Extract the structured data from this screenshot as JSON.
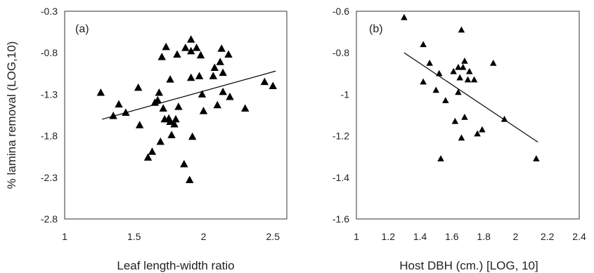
{
  "figure": {
    "shared_ylabel": "% lamina removal (LOG,10)"
  },
  "chart_data": [
    {
      "type": "scatter",
      "panel_label": "(a)",
      "xlabel": "Leaf length-width ratio",
      "ylabel": "% lamina removal (LOG,10)",
      "xlim": [
        1,
        2.6
      ],
      "ylim": [
        -2.8,
        -0.3
      ],
      "xticks": [
        "1",
        "1.5",
        "2",
        "2.5"
      ],
      "yticks": [
        "-0.3",
        "-0.8",
        "-1.3",
        "-1.8",
        "-2.3",
        "-2.8"
      ],
      "xtick_values": [
        1,
        1.5,
        2,
        2.5
      ],
      "ytick_values": [
        -0.3,
        -0.8,
        -1.3,
        -1.8,
        -2.3,
        -2.8
      ],
      "marker": "triangle",
      "grid": false,
      "points": [
        [
          1.26,
          -1.28
        ],
        [
          1.35,
          -1.56
        ],
        [
          1.39,
          -1.42
        ],
        [
          1.44,
          -1.52
        ],
        [
          1.53,
          -1.22
        ],
        [
          1.54,
          -1.67
        ],
        [
          1.6,
          -2.06
        ],
        [
          1.63,
          -1.99
        ],
        [
          1.65,
          -1.4
        ],
        [
          1.67,
          -1.37
        ],
        [
          1.68,
          -1.28
        ],
        [
          1.69,
          -1.87
        ],
        [
          1.7,
          -0.85
        ],
        [
          1.71,
          -1.47
        ],
        [
          1.72,
          -1.6
        ],
        [
          1.73,
          -0.73
        ],
        [
          1.75,
          -1.59
        ],
        [
          1.76,
          -1.12
        ],
        [
          1.76,
          -1.63
        ],
        [
          1.77,
          -1.79
        ],
        [
          1.79,
          -1.66
        ],
        [
          1.8,
          -1.6
        ],
        [
          1.81,
          -0.82
        ],
        [
          1.82,
          -1.45
        ],
        [
          1.86,
          -2.14
        ],
        [
          1.87,
          -0.74
        ],
        [
          1.9,
          -2.33
        ],
        [
          1.91,
          -0.64
        ],
        [
          1.91,
          -1.1
        ],
        [
          1.91,
          -0.78
        ],
        [
          1.92,
          -1.81
        ],
        [
          1.95,
          -0.74
        ],
        [
          1.97,
          -1.08
        ],
        [
          1.98,
          -0.83
        ],
        [
          1.99,
          -1.3
        ],
        [
          2.0,
          -1.5
        ],
        [
          2.07,
          -1.08
        ],
        [
          2.08,
          -0.98
        ],
        [
          2.1,
          -1.43
        ],
        [
          2.12,
          -0.91
        ],
        [
          2.13,
          -0.75
        ],
        [
          2.14,
          -1.27
        ],
        [
          2.14,
          -1.04
        ],
        [
          2.18,
          -0.82
        ],
        [
          2.19,
          -1.33
        ],
        [
          2.3,
          -1.47
        ],
        [
          2.44,
          -1.15
        ],
        [
          2.5,
          -1.2
        ]
      ],
      "trendline": {
        "x": [
          1.27,
          2.52
        ],
        "y": [
          -1.6,
          -1.02
        ]
      }
    },
    {
      "type": "scatter",
      "panel_label": "(b)",
      "xlabel": "Host DBH (cm.) [LOG, 10]",
      "ylabel": "",
      "xlim": [
        1,
        2.4
      ],
      "ylim": [
        -1.6,
        -0.6
      ],
      "xticks": [
        "1",
        "1.2",
        "1.4",
        "1.6",
        "1.8",
        "2",
        "2.2",
        "2.4"
      ],
      "yticks": [
        "-0.6",
        "-0.8",
        "-1",
        "-1.2",
        "-1.4",
        "-1.6"
      ],
      "xtick_values": [
        1,
        1.2,
        1.4,
        1.6,
        1.8,
        2,
        2.2,
        2.4
      ],
      "ytick_values": [
        -0.6,
        -0.8,
        -1,
        -1.2,
        -1.4,
        -1.6
      ],
      "marker": "triangle",
      "grid": false,
      "points": [
        [
          1.3,
          -0.63
        ],
        [
          1.42,
          -0.76
        ],
        [
          1.42,
          -0.94
        ],
        [
          1.46,
          -0.85
        ],
        [
          1.5,
          -0.98
        ],
        [
          1.52,
          -0.9
        ],
        [
          1.53,
          -1.31
        ],
        [
          1.56,
          -1.03
        ],
        [
          1.61,
          -0.89
        ],
        [
          1.62,
          -1.13
        ],
        [
          1.64,
          -0.87
        ],
        [
          1.64,
          -0.99
        ],
        [
          1.65,
          -0.92
        ],
        [
          1.66,
          -1.21
        ],
        [
          1.66,
          -0.69
        ],
        [
          1.67,
          -0.87
        ],
        [
          1.68,
          -0.84
        ],
        [
          1.68,
          -1.11
        ],
        [
          1.7,
          -0.93
        ],
        [
          1.71,
          -0.89
        ],
        [
          1.74,
          -0.93
        ],
        [
          1.76,
          -1.19
        ],
        [
          1.79,
          -1.17
        ],
        [
          1.86,
          -0.85
        ],
        [
          1.93,
          -1.12
        ],
        [
          2.13,
          -1.31
        ]
      ],
      "trendline": {
        "x": [
          1.3,
          2.14
        ],
        "y": [
          -0.8,
          -1.23
        ]
      }
    }
  ]
}
